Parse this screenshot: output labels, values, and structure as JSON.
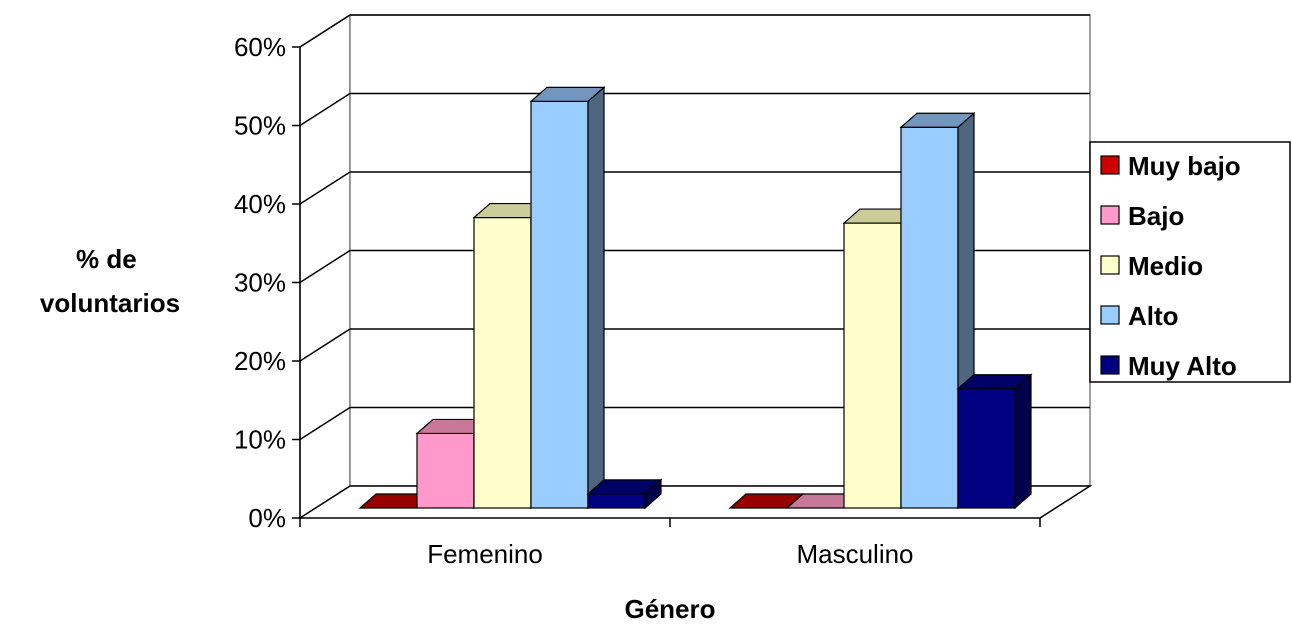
{
  "chart_data": {
    "type": "bar",
    "style": "3d-clustered-column",
    "title": "",
    "xlabel": "Género",
    "ylabel_lines": [
      "% de",
      "voluntarios"
    ],
    "categories": [
      "Femenino",
      "Masculino"
    ],
    "ylim": [
      0,
      0.6
    ],
    "yticks": [
      0,
      0.1,
      0.2,
      0.3,
      0.4,
      0.5,
      0.6
    ],
    "ytick_labels": [
      "0%",
      "10%",
      "20%",
      "30%",
      "40%",
      "50%",
      "60%"
    ],
    "grid": true,
    "legend_position": "right",
    "series": [
      {
        "name": "Muy bajo",
        "values": [
          0.0,
          0.0
        ],
        "color": "#cc0000",
        "top": "#990000",
        "side": "#660000"
      },
      {
        "name": "Bajo",
        "values": [
          0.095,
          0.0
        ],
        "color": "#ff99cc",
        "top": "#c87898",
        "side": "#b3668c"
      },
      {
        "name": "Medio",
        "values": [
          0.37,
          0.363
        ],
        "color": "#ffffcc",
        "top": "#cccc99",
        "side": "#b3b38f"
      },
      {
        "name": "Alto",
        "values": [
          0.518,
          0.485
        ],
        "color": "#99ccff",
        "top": "#7396bf",
        "side": "#4f6680"
      },
      {
        "name": "Muy Alto",
        "values": [
          0.018,
          0.152
        ],
        "color": "#000080",
        "top": "#000066",
        "side": "#00004d"
      }
    ]
  }
}
